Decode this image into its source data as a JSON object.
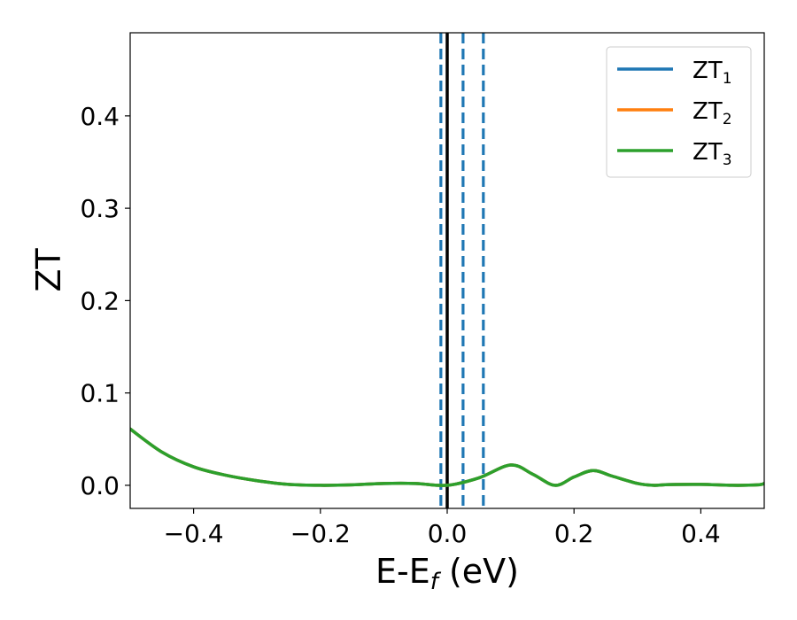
{
  "chart_data": {
    "type": "line",
    "title": "",
    "xlabel_main": "E-E",
    "xlabel_sub": "f",
    "xlabel_unit": " (eV)",
    "ylabel": "ZT",
    "xlim": [
      -0.5,
      0.5
    ],
    "ylim": [
      -0.025,
      0.49
    ],
    "xticks": [
      -0.4,
      -0.2,
      0.0,
      0.2,
      0.4
    ],
    "xtick_labels": [
      "−0.4",
      "−0.2",
      "0.0",
      "0.2",
      "0.4"
    ],
    "yticks": [
      0.0,
      0.1,
      0.2,
      0.3,
      0.4
    ],
    "ytick_labels": [
      "0.0",
      "0.1",
      "0.2",
      "0.3",
      "0.4"
    ],
    "grid": false,
    "legend_position": "top-right",
    "vertical_lines": [
      {
        "x": 0.0,
        "style": "solid",
        "color": "#000000"
      },
      {
        "x": -0.01,
        "style": "dashed",
        "color": "#1f77b4"
      },
      {
        "x": 0.025,
        "style": "dashed",
        "color": "#1f77b4"
      },
      {
        "x": 0.057,
        "style": "dashed",
        "color": "#1f77b4"
      }
    ],
    "x": [
      -0.5,
      -0.45,
      -0.4,
      -0.35,
      -0.3,
      -0.25,
      -0.2,
      -0.15,
      -0.1,
      -0.05,
      0.0,
      0.05,
      0.1,
      0.135,
      0.17,
      0.2,
      0.23,
      0.26,
      0.3,
      0.325,
      0.35,
      0.4,
      0.45,
      0.49,
      0.5
    ],
    "series": [
      {
        "name_main": "ZT",
        "name_sub": "1",
        "color": "#1f77b4",
        "values": [
          0.061,
          0.036,
          0.02,
          0.011,
          0.005,
          0.001,
          0.0,
          0.0005,
          0.002,
          0.002,
          0.0,
          0.008,
          0.022,
          0.012,
          0.0,
          0.009,
          0.016,
          0.01,
          0.002,
          0.0,
          0.0008,
          0.001,
          0.0,
          0.0005,
          0.002
        ]
      },
      {
        "name_main": "ZT",
        "name_sub": "2",
        "color": "#ff7f0e",
        "values": [
          0.061,
          0.036,
          0.02,
          0.011,
          0.005,
          0.001,
          0.0,
          0.0005,
          0.002,
          0.002,
          0.0,
          0.008,
          0.022,
          0.012,
          0.0,
          0.009,
          0.016,
          0.01,
          0.002,
          0.0,
          0.0008,
          0.001,
          0.0,
          0.0005,
          0.002
        ]
      },
      {
        "name_main": "ZT",
        "name_sub": "3",
        "color": "#2ca02c",
        "values": [
          0.061,
          0.036,
          0.02,
          0.011,
          0.005,
          0.001,
          0.0,
          0.0005,
          0.002,
          0.002,
          0.0,
          0.008,
          0.022,
          0.012,
          0.0,
          0.009,
          0.016,
          0.01,
          0.002,
          0.0,
          0.0008,
          0.001,
          0.0,
          0.0005,
          0.002
        ]
      }
    ]
  }
}
